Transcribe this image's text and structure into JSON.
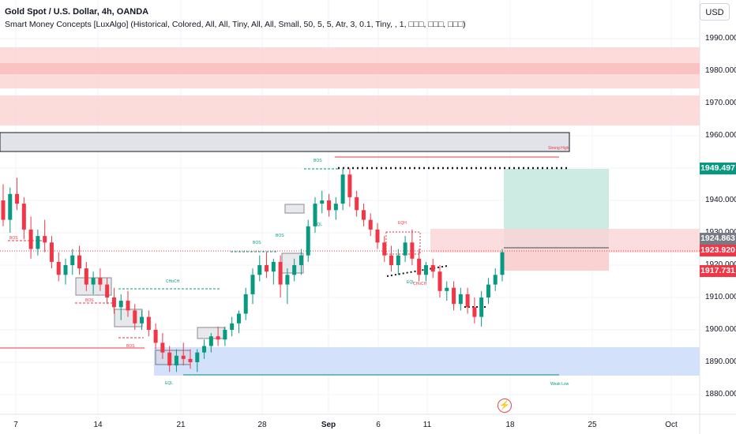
{
  "header": {
    "title": "Gold Spot / U.S. Dollar, 4h, OANDA",
    "indicator": "Smart Money Concepts [LuxAlgo] (Historical, Colored, All, All, Tiny, All, All, Small, 50, 5, 5, Atr, 3, 0.1, Tiny, , 1, □□□, □□□, □□□)"
  },
  "currency_button": "USD",
  "price_axis": [
    "1990.000",
    "1980.000",
    "1970.000",
    "1960.000",
    "1950.000",
    "1940.000",
    "1930.000",
    "1920.000",
    "1910.000",
    "1900.000",
    "1890.000",
    "1880.000"
  ],
  "time_axis": [
    {
      "label": "7",
      "bold": false
    },
    {
      "label": "14",
      "bold": false
    },
    {
      "label": "21",
      "bold": false
    },
    {
      "label": "28",
      "bold": false
    },
    {
      "label": "Sep",
      "bold": true
    },
    {
      "label": "6",
      "bold": false
    },
    {
      "label": "11",
      "bold": false
    },
    {
      "label": "18",
      "bold": false
    },
    {
      "label": "25",
      "bold": false
    },
    {
      "label": "Oct",
      "bold": false
    }
  ],
  "price_tags": {
    "target": {
      "value": "1949.497",
      "color": "#089981"
    },
    "entry": {
      "value": "1924.863",
      "color": "#787b86"
    },
    "current": {
      "value": "1923.920",
      "color": "#f23645"
    },
    "stop": {
      "value": "1917.731",
      "color": "#f23645"
    }
  },
  "annotations": {
    "strong_high": "Strong High",
    "weak_low": "Weak Low",
    "bos": "BOS",
    "choch": "CHoCH",
    "eql": "EQL",
    "eqh": "EQH"
  },
  "colors": {
    "bull": "#089981",
    "bear": "#f23645",
    "supply": "#f7a9a9",
    "demand": "#9fbcf5",
    "grid": "#f0f3fa"
  },
  "chart_data": {
    "type": "candlestick",
    "title": "Gold Spot / U.S. Dollar, 4h, OANDA",
    "ylim": [
      1877,
      1997
    ],
    "price_levels": {
      "target": 1949.497,
      "entry": 1924.863,
      "current": 1923.92,
      "stop": 1917.731
    },
    "ohlc": [
      [
        1940,
        1945,
        1932,
        1934
      ],
      [
        1934,
        1944,
        1930,
        1942
      ],
      [
        1942,
        1947,
        1937,
        1939
      ],
      [
        1939,
        1941,
        1928,
        1931
      ],
      [
        1931,
        1935,
        1922,
        1925
      ],
      [
        1925,
        1931,
        1923,
        1929
      ],
      [
        1929,
        1934,
        1924,
        1927
      ],
      [
        1927,
        1929,
        1919,
        1921
      ],
      [
        1921,
        1924,
        1915,
        1917
      ],
      [
        1917,
        1922,
        1914,
        1920
      ],
      [
        1920,
        1925,
        1917,
        1923
      ],
      [
        1923,
        1926,
        1917,
        1919
      ],
      [
        1919,
        1921,
        1912,
        1914
      ],
      [
        1914,
        1918,
        1911,
        1916
      ],
      [
        1916,
        1919,
        1912,
        1914
      ],
      [
        1914,
        1916,
        1908,
        1910
      ],
      [
        1910,
        1913,
        1905,
        1907
      ],
      [
        1907,
        1911,
        1903,
        1909
      ],
      [
        1909,
        1912,
        1904,
        1906
      ],
      [
        1906,
        1908,
        1900,
        1902
      ],
      [
        1902,
        1906,
        1900,
        1904
      ],
      [
        1904,
        1906,
        1898,
        1900
      ],
      [
        1900,
        1902,
        1894,
        1896
      ],
      [
        1896,
        1899,
        1891,
        1893
      ],
      [
        1893,
        1895,
        1887,
        1889
      ],
      [
        1889,
        1894,
        1887,
        1892
      ],
      [
        1892,
        1896,
        1889,
        1891
      ],
      [
        1891,
        1894,
        1888,
        1890
      ],
      [
        1890,
        1894,
        1887,
        1893
      ],
      [
        1893,
        1897,
        1891,
        1895
      ],
      [
        1895,
        1899,
        1893,
        1898
      ],
      [
        1898,
        1901,
        1895,
        1897
      ],
      [
        1897,
        1901,
        1895,
        1900
      ],
      [
        1900,
        1904,
        1898,
        1902
      ],
      [
        1902,
        1906,
        1899,
        1905
      ],
      [
        1905,
        1913,
        1903,
        1911
      ],
      [
        1911,
        1919,
        1908,
        1917
      ],
      [
        1917,
        1923,
        1915,
        1920
      ],
      [
        1920,
        1924,
        1916,
        1918
      ],
      [
        1918,
        1922,
        1914,
        1921
      ],
      [
        1921,
        1923,
        1910,
        1914
      ],
      [
        1914,
        1919,
        1908,
        1917
      ],
      [
        1917,
        1922,
        1915,
        1920
      ],
      [
        1920,
        1925,
        1917,
        1923
      ],
      [
        1923,
        1934,
        1921,
        1932
      ],
      [
        1932,
        1941,
        1930,
        1939
      ],
      [
        1939,
        1943,
        1936,
        1940
      ],
      [
        1940,
        1942,
        1935,
        1937
      ],
      [
        1937,
        1941,
        1934,
        1939
      ],
      [
        1939,
        1950,
        1937,
        1948
      ],
      [
        1948,
        1950,
        1938,
        1941
      ],
      [
        1941,
        1943,
        1935,
        1937
      ],
      [
        1937,
        1939,
        1932,
        1934
      ],
      [
        1934,
        1936,
        1929,
        1931
      ],
      [
        1931,
        1933,
        1925,
        1927
      ],
      [
        1927,
        1929,
        1921,
        1923
      ],
      [
        1923,
        1926,
        1918,
        1920
      ],
      [
        1920,
        1925,
        1917,
        1923
      ],
      [
        1923,
        1929,
        1921,
        1927
      ],
      [
        1927,
        1931,
        1920,
        1922
      ],
      [
        1922,
        1925,
        1915,
        1917
      ],
      [
        1917,
        1921,
        1915,
        1920
      ],
      [
        1920,
        1922,
        1916,
        1918
      ],
      [
        1918,
        1920,
        1910,
        1912
      ],
      [
        1912,
        1915,
        1909,
        1913
      ],
      [
        1913,
        1915,
        1906,
        1908
      ],
      [
        1908,
        1913,
        1906,
        1911
      ],
      [
        1911,
        1913,
        1905,
        1907
      ],
      [
        1907,
        1910,
        1902,
        1904
      ],
      [
        1904,
        1912,
        1901,
        1910
      ],
      [
        1910,
        1916,
        1908,
        1914
      ],
      [
        1914,
        1919,
        1912,
        1917
      ],
      [
        1917,
        1925,
        1915,
        1924
      ]
    ]
  }
}
